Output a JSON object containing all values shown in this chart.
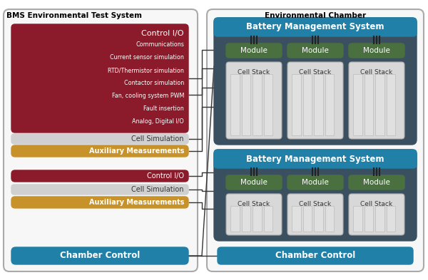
{
  "bg_color": "#ffffff",
  "title_left": "BMS Environmental Test System",
  "title_right": "Environmental Chamber",
  "crimson": "#8b1a2a",
  "gold": "#c8922a",
  "silver": "#d0d0d0",
  "teal": "#2080a8",
  "dark_teal": "#3a5060",
  "green": "#4a7040",
  "light_gray": "#d8d8d8",
  "mid_gray": "#c0c0c0",
  "control_io_items": [
    "Communications",
    "Current sensor simulation",
    "RTD/Thermistor simulation",
    "Contactor simulation",
    "Fan, cooling system PWM",
    "Fault insertion",
    "Analog, Digital I/O"
  ]
}
